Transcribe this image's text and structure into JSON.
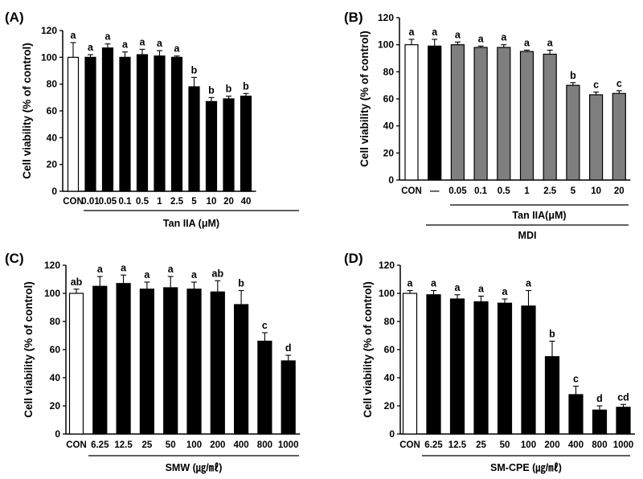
{
  "chart_data": [
    {
      "panel": "(A)",
      "type": "bar",
      "categories": [
        "CON",
        "0.01",
        "0.05",
        "0.1",
        "0.5",
        "1",
        "2.5",
        "5",
        "10",
        "20",
        "40"
      ],
      "values": [
        100,
        100,
        107,
        100,
        102,
        101,
        100,
        78,
        67,
        69,
        71
      ],
      "errors": [
        11,
        2,
        3,
        4,
        4,
        4,
        1,
        7,
        3,
        2,
        2
      ],
      "labels": [
        "a",
        "a",
        "a",
        "a",
        "a",
        "a",
        "a",
        "b",
        "b",
        "b",
        "b"
      ],
      "fills": [
        "white",
        "black",
        "black",
        "black",
        "black",
        "black",
        "black",
        "black",
        "black",
        "black",
        "black"
      ],
      "xlabel": "Tan IIA (μM)",
      "ylabel": "Cell viability (% of control)",
      "ylim": [
        0,
        120
      ],
      "yticks": [
        0,
        20,
        40,
        60,
        80,
        100,
        120
      ],
      "grid": false
    },
    {
      "panel": "(B)",
      "type": "bar",
      "categories": [
        "CON",
        "—",
        "0.05",
        "0.1",
        "0.5",
        "1",
        "2.5",
        "5",
        "10",
        "20"
      ],
      "values": [
        100,
        99,
        100,
        98,
        98,
        95,
        93,
        70,
        63,
        64
      ],
      "errors": [
        4,
        5,
        2,
        1,
        2,
        1,
        3,
        2,
        2,
        2
      ],
      "labels": [
        "a",
        "a",
        "a",
        "a",
        "a",
        "a",
        "a",
        "b",
        "c",
        "c"
      ],
      "fills": [
        "white",
        "black",
        "gray",
        "gray",
        "gray",
        "gray",
        "gray",
        "gray",
        "gray",
        "gray"
      ],
      "xlabel": "Tan IIA(μM)",
      "xlabel2": "MDI",
      "ylabel": "Cell viability (% of control)",
      "ylim": [
        0,
        120
      ],
      "yticks": [
        0,
        20,
        40,
        60,
        80,
        100,
        120
      ],
      "grid": false
    },
    {
      "panel": "(C)",
      "type": "bar",
      "categories": [
        "CON",
        "6.25",
        "12.5",
        "25",
        "50",
        "100",
        "200",
        "400",
        "800",
        "1000"
      ],
      "values": [
        100,
        105,
        107,
        103,
        104,
        103,
        101,
        92,
        66,
        52
      ],
      "errors": [
        3,
        7,
        6,
        5,
        8,
        5,
        8,
        10,
        6,
        4
      ],
      "labels": [
        "ab",
        "a",
        "a",
        "a",
        "a",
        "a",
        "ab",
        "b",
        "c",
        "d"
      ],
      "fills": [
        "white",
        "black",
        "black",
        "black",
        "black",
        "black",
        "black",
        "black",
        "black",
        "black"
      ],
      "xlabel": "SMW (㎍/㎖)",
      "ylabel": "Cell viability (% of control)",
      "ylim": [
        0,
        120
      ],
      "yticks": [
        0,
        20,
        40,
        60,
        80,
        100,
        120
      ],
      "grid": false
    },
    {
      "panel": "(D)",
      "type": "bar",
      "categories": [
        "CON",
        "6.25",
        "12.5",
        "25",
        "50",
        "100",
        "200",
        "400",
        "800",
        "1000"
      ],
      "values": [
        100,
        99,
        96,
        94,
        93,
        91,
        55,
        28,
        17,
        19
      ],
      "errors": [
        2,
        3,
        3,
        4,
        3,
        11,
        11,
        6,
        3,
        2
      ],
      "labels": [
        "a",
        "a",
        "a",
        "a",
        "a",
        "a",
        "b",
        "c",
        "d",
        "cd"
      ],
      "fills": [
        "white",
        "black",
        "black",
        "black",
        "black",
        "black",
        "black",
        "black",
        "black",
        "black"
      ],
      "xlabel": "SM-CPE (㎍/㎖)",
      "ylabel": "Cell viability (% of control)",
      "ylim": [
        0,
        120
      ],
      "yticks": [
        0,
        20,
        40,
        60,
        80,
        100,
        120
      ],
      "grid": false
    }
  ]
}
